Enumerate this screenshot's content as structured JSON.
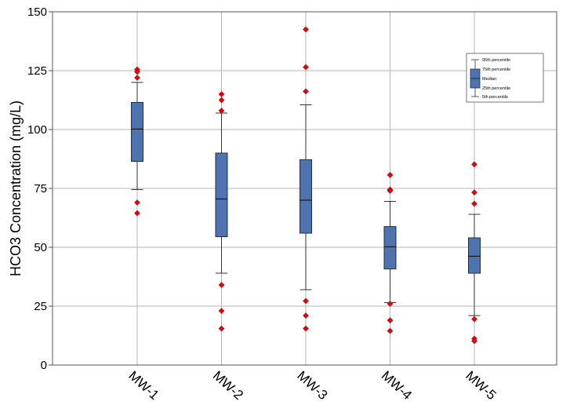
{
  "chart_data": {
    "type": "box",
    "title": "",
    "xlabel": "",
    "ylabel": "HCO3 Concentration (mg/L)",
    "ylim": [
      0,
      150
    ],
    "yticks": [
      0,
      25,
      50,
      75,
      100,
      125,
      150
    ],
    "grid": true,
    "box_color": "#4f73ae",
    "outlier_color": "#e8000b",
    "categories": [
      "MW-1",
      "MW-2",
      "MW-3",
      "MW-4",
      "MW-5"
    ],
    "boxes": [
      {
        "whisker_low": 74.5,
        "q1": 86.5,
        "median": 100.2,
        "q3": 111.5,
        "whisker_high": 120,
        "outliers": [
          125.5,
          124.5,
          122,
          69,
          64.5
        ]
      },
      {
        "whisker_low": 39,
        "q1": 54.5,
        "median": 70.5,
        "q3": 90,
        "whisker_high": 107,
        "outliers": [
          115,
          112.5,
          108,
          34,
          23,
          15.5
        ]
      },
      {
        "whisker_low": 32,
        "q1": 56,
        "median": 70,
        "q3": 87.2,
        "whisker_high": 110.5,
        "outliers": [
          142.5,
          126.5,
          116.2,
          27.2,
          21,
          15.5
        ]
      },
      {
        "whisker_low": 26.5,
        "q1": 40.8,
        "median": 50.2,
        "q3": 58.8,
        "whisker_high": 69.5,
        "outliers": [
          80.7,
          74.5,
          74,
          26,
          19,
          14.5
        ]
      },
      {
        "whisker_low": 21,
        "q1": 39,
        "median": 46.2,
        "q3": 54,
        "whisker_high": 64,
        "outliers": [
          85.2,
          73.3,
          68.5,
          19.5,
          11.2,
          10.2
        ]
      }
    ],
    "legend": {
      "placement": "top-right",
      "labels": [
        "95th percentile",
        "75th percentile",
        "Median",
        "25th percentile",
        "5th percentile"
      ]
    }
  }
}
